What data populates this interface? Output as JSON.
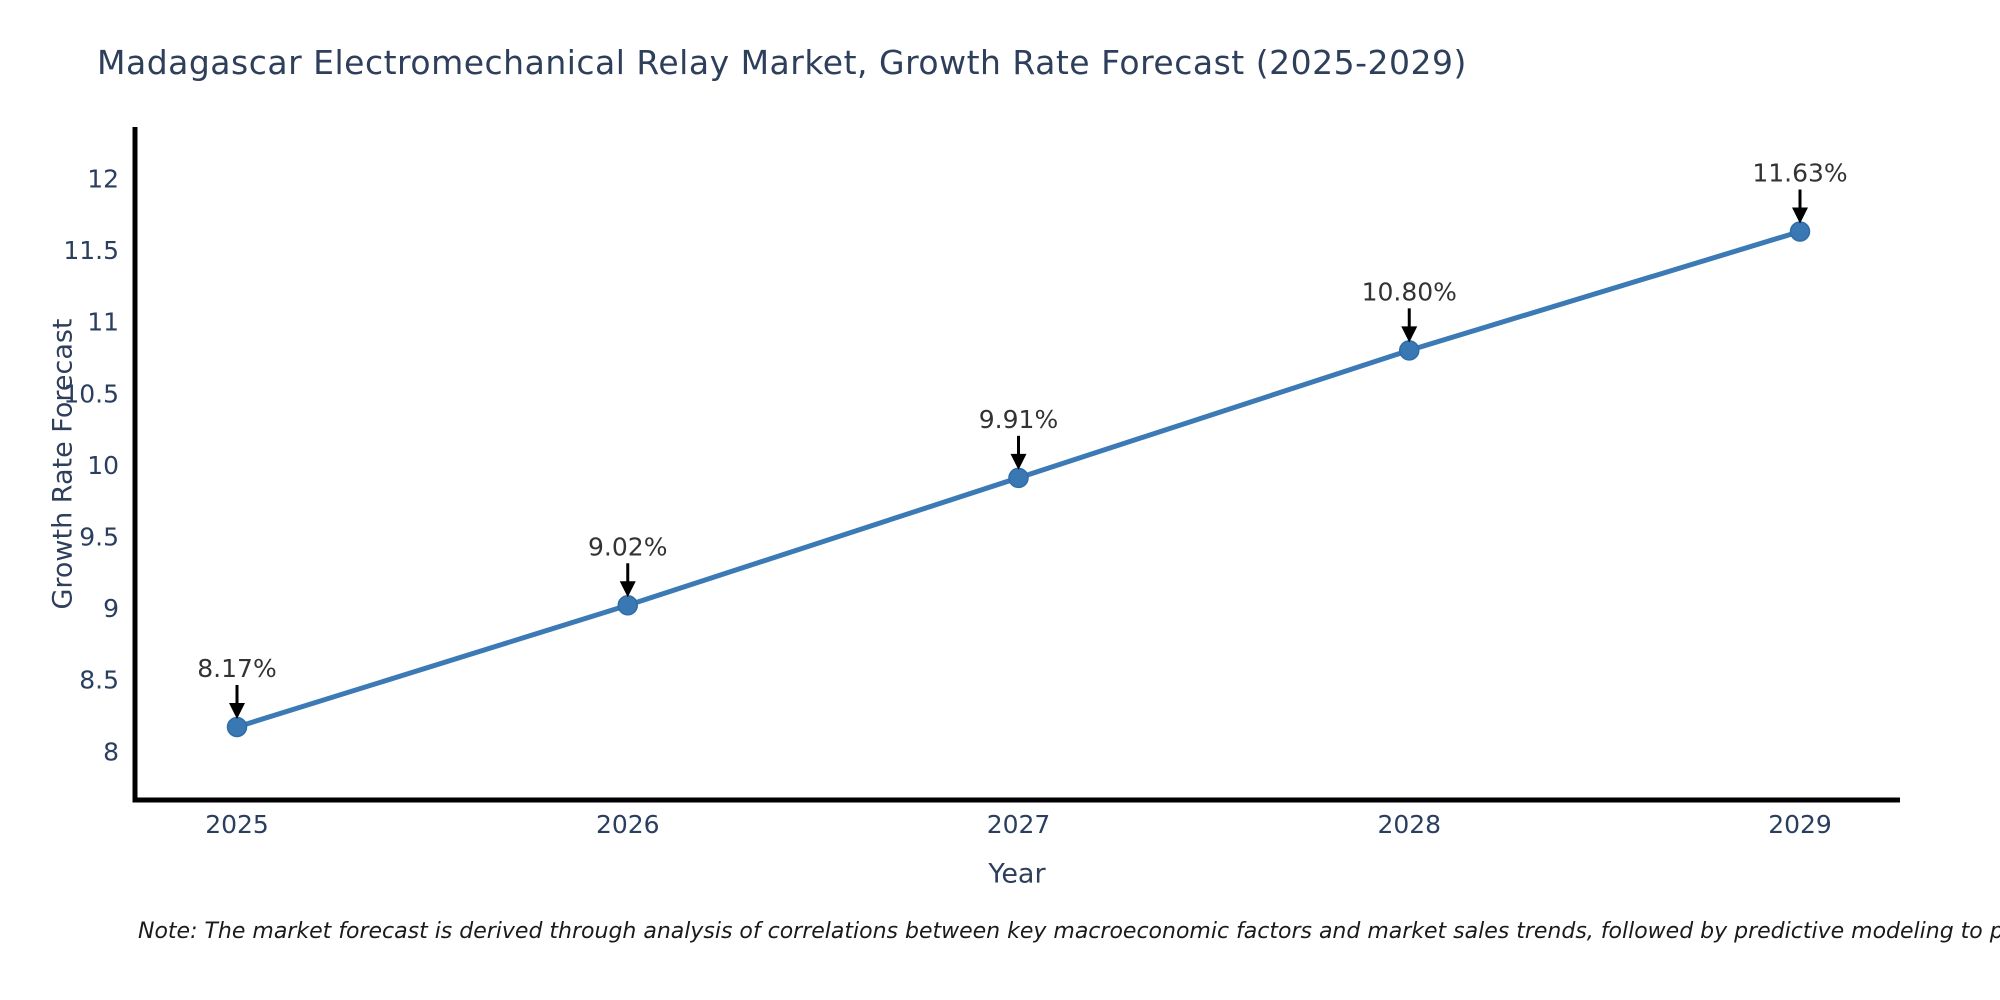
{
  "note": "Note: The market forecast is derived through analysis of correlations between key macroeconomic factors and market sales trends, followed by predictive modeling to project future sal",
  "chart_data": {
    "type": "line",
    "title": "Madagascar Electromechanical Relay Market, Growth Rate Forecast (2025-2029)",
    "xlabel": "Year",
    "ylabel": "Growth Rate Forecast",
    "categories": [
      "2025",
      "2026",
      "2027",
      "2028",
      "2029"
    ],
    "values": [
      8.17,
      9.02,
      9.91,
      10.8,
      11.63
    ],
    "point_labels": [
      "8.17%",
      "9.02%",
      "9.91%",
      "10.80%",
      "11.63%"
    ],
    "yticks": [
      8,
      8.5,
      9,
      9.5,
      10,
      10.5,
      11,
      11.5,
      12
    ],
    "ytick_labels": [
      "8",
      "8.5",
      "9",
      "9.5",
      "10",
      "10.5",
      "11",
      "11.5",
      "12"
    ],
    "ylim": [
      7.66,
      12.36
    ],
    "grid": false,
    "legend": "none",
    "annotation_style": "value label above point with downward black arrow",
    "colors": {
      "line": "#3c7ab6",
      "marker_fill": "#3a78b4",
      "marker_edge": "#2f6da9",
      "annotation_arrow": "#000000",
      "annotation_text": "#333333",
      "title_text": "#2e3f5c",
      "axis_text": "#2a3f5f",
      "spine": "#000000",
      "note_text": "#1a1a1a",
      "background": "#ffffff"
    }
  }
}
